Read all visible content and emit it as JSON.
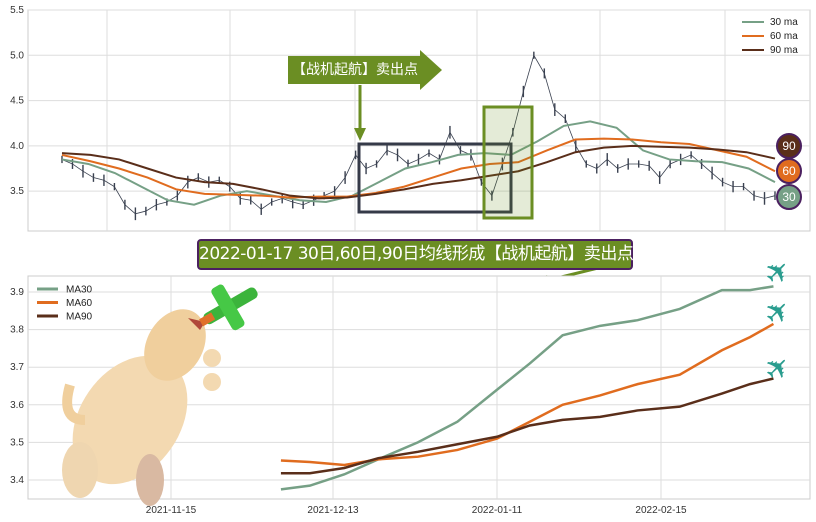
{
  "chart_data": [
    {
      "type": "line",
      "title": "",
      "ylim": [
        3.06,
        5.5
      ],
      "yticks": [
        "5.5",
        "5.0",
        "4.5",
        "4.0",
        "3.5"
      ],
      "ytick_values": [
        5.5,
        5.0,
        4.5,
        4.0,
        3.5
      ],
      "grid": true,
      "legend": "top-right",
      "price_bars": [
        3.85,
        3.8,
        3.72,
        3.65,
        3.62,
        3.55,
        3.35,
        3.25,
        3.28,
        3.35,
        3.38,
        3.45,
        3.6,
        3.65,
        3.6,
        3.62,
        3.55,
        3.42,
        3.4,
        3.3,
        3.38,
        3.42,
        3.38,
        3.35,
        3.4,
        3.45,
        3.5,
        3.65,
        3.9,
        3.75,
        3.8,
        3.95,
        3.9,
        3.8,
        3.85,
        3.92,
        3.85,
        4.15,
        3.95,
        3.9,
        3.6,
        3.45,
        3.8,
        4.15,
        4.6,
        5.0,
        4.8,
        4.4,
        4.3,
        4.0,
        3.8,
        3.75,
        3.85,
        3.75,
        3.8,
        3.8,
        3.78,
        3.65,
        3.8,
        3.85,
        3.9,
        3.8,
        3.7,
        3.6,
        3.55,
        3.55,
        3.45,
        3.42,
        3.45
      ],
      "series": [
        {
          "name": "30 ma",
          "color": "#76a086",
          "values": [
            3.85,
            3.8,
            3.7,
            3.55,
            3.4,
            3.35,
            3.45,
            3.5,
            3.45,
            3.4,
            3.38,
            3.45,
            3.6,
            3.75,
            3.82,
            3.9,
            3.92,
            3.9,
            4.05,
            4.22,
            4.27,
            4.2,
            3.95,
            3.85,
            3.83,
            3.82,
            3.75,
            3.6
          ]
        },
        {
          "name": "60 ma",
          "color": "#e06c1f",
          "values": [
            3.9,
            3.83,
            3.75,
            3.65,
            3.52,
            3.47,
            3.46,
            3.45,
            3.43,
            3.44,
            3.44,
            3.48,
            3.55,
            3.65,
            3.75,
            3.8,
            3.82,
            3.95,
            4.07,
            4.08,
            4.07,
            4.04,
            4.02,
            3.95,
            3.88,
            3.72
          ]
        },
        {
          "name": "90 ma",
          "color": "#5a2e1a",
          "values": [
            3.92,
            3.9,
            3.85,
            3.75,
            3.65,
            3.6,
            3.58,
            3.52,
            3.45,
            3.42,
            3.43,
            3.47,
            3.52,
            3.58,
            3.62,
            3.67,
            3.72,
            3.82,
            3.93,
            3.98,
            4.0,
            3.99,
            3.98,
            3.96,
            3.93,
            3.86
          ]
        }
      ],
      "end_badges": [
        "90",
        "60",
        "30"
      ],
      "annotation": "【战机起航】卖出点"
    },
    {
      "type": "line",
      "title": "2022-01-17 30日,60日,90日均线形成【战机起航】卖出点",
      "ylim": [
        3.35,
        3.94
      ],
      "yticks": [
        "3.9",
        "3.8",
        "3.7",
        "3.6",
        "3.5",
        "3.4"
      ],
      "ytick_values": [
        3.9,
        3.8,
        3.7,
        3.6,
        3.5,
        3.4
      ],
      "xticks": [
        "2021-11-15",
        "2021-12-13",
        "2022-01-11",
        "2022-02-15"
      ],
      "grid": true,
      "legend": "top-left",
      "x": [
        "2021-12-04",
        "2021-12-09",
        "2021-12-15",
        "2021-12-21",
        "2021-12-28",
        "2022-01-04",
        "2022-01-11",
        "2022-01-18",
        "2022-01-25",
        "2022-02-02",
        "2022-02-10",
        "2022-02-19",
        "2022-02-28",
        "2022-03-06",
        "2022-03-11"
      ],
      "series": [
        {
          "name": "MA30",
          "color": "#76a086",
          "values": [
            3.375,
            3.385,
            3.415,
            3.455,
            3.5,
            3.555,
            3.64,
            3.71,
            3.785,
            3.81,
            3.825,
            3.855,
            3.905,
            3.905,
            3.915
          ]
        },
        {
          "name": "MA60",
          "color": "#e06c1f",
          "values": [
            3.452,
            3.448,
            3.44,
            3.455,
            3.462,
            3.48,
            3.51,
            3.555,
            3.6,
            3.625,
            3.655,
            3.68,
            3.745,
            3.78,
            3.815
          ]
        },
        {
          "name": "MA90",
          "color": "#5a2e1a",
          "values": [
            3.418,
            3.418,
            3.432,
            3.458,
            3.475,
            3.495,
            3.515,
            3.545,
            3.56,
            3.568,
            3.585,
            3.595,
            3.63,
            3.655,
            3.67
          ]
        }
      ]
    }
  ],
  "colors": {
    "accent": "#6b8e23",
    "border": "#4b2060",
    "price": "#3a4150",
    "plane": "#2a9d8f"
  },
  "icons": [
    "airplane-icon",
    "dog-illustration",
    "toy-plane-illustration"
  ]
}
